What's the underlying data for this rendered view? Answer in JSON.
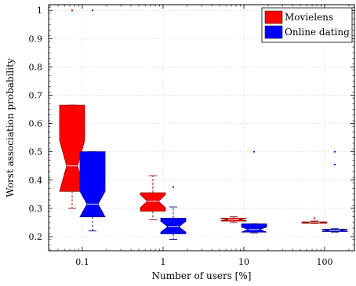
{
  "chart_data": {
    "type": "box",
    "xlabel": "Number of users [%]",
    "ylabel": "Worst association probability",
    "categories": [
      "0.1",
      "1",
      "10",
      "100"
    ],
    "x_scale": "log",
    "ylim": [
      0.15,
      1.02
    ],
    "yticks": [
      0.2,
      0.3,
      0.4,
      0.5,
      0.6,
      0.7,
      0.8,
      0.9,
      1
    ],
    "ytick_labels": [
      "0.2",
      "0.3",
      "0.4",
      "0.5",
      "0.6",
      "0.7",
      "0.8",
      "0.9",
      "1"
    ],
    "grid": true,
    "notched": true,
    "legend_position": "top-right",
    "series": [
      {
        "name": "Movielens",
        "color": "#ff0000",
        "boxes": [
          {
            "category": "0.1",
            "whisker_low": 0.3,
            "q1": 0.36,
            "median": 0.45,
            "q3": 0.665,
            "whisker_high": 0.665,
            "outliers": [
              1.0
            ]
          },
          {
            "category": "1",
            "whisker_low": 0.26,
            "q1": 0.29,
            "median": 0.325,
            "q3": 0.355,
            "whisker_high": 0.415,
            "outliers": []
          },
          {
            "category": "10",
            "whisker_low": 0.25,
            "q1": 0.255,
            "median": 0.26,
            "q3": 0.265,
            "whisker_high": 0.27,
            "outliers": []
          },
          {
            "category": "100",
            "whisker_low": 0.246,
            "q1": 0.247,
            "median": 0.249,
            "q3": 0.252,
            "whisker_high": 0.255,
            "outliers": [
              0.265
            ]
          }
        ]
      },
      {
        "name": "Online dating",
        "color": "#0000ff",
        "boxes": [
          {
            "category": "0.1",
            "whisker_low": 0.22,
            "q1": 0.27,
            "median": 0.315,
            "q3": 0.5,
            "whisker_high": 0.5,
            "outliers": [
              1.0
            ]
          },
          {
            "category": "1",
            "whisker_low": 0.19,
            "q1": 0.21,
            "median": 0.235,
            "q3": 0.265,
            "whisker_high": 0.305,
            "outliers": [
              0.375
            ]
          },
          {
            "category": "10",
            "whisker_low": 0.213,
            "q1": 0.216,
            "median": 0.225,
            "q3": 0.245,
            "whisker_high": 0.245,
            "outliers": [
              0.5
            ]
          },
          {
            "category": "100",
            "whisker_low": 0.216,
            "q1": 0.218,
            "median": 0.222,
            "q3": 0.226,
            "whisker_high": 0.228,
            "outliers": [
              0.5,
              0.455
            ]
          }
        ]
      }
    ]
  }
}
